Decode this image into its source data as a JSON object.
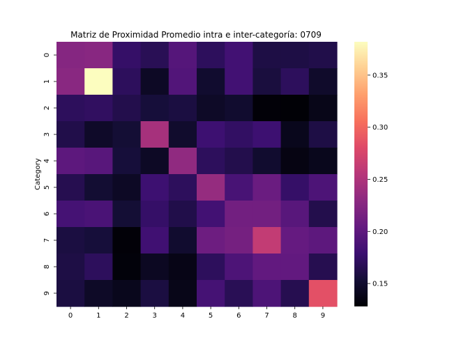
{
  "chart_data": {
    "type": "heatmap",
    "title": "Matriz de Proximidad Promedio intra e inter-categoría: 0709",
    "xlabel": "",
    "ylabel": "Category",
    "x_categories": [
      "0",
      "1",
      "2",
      "3",
      "4",
      "5",
      "6",
      "7",
      "8",
      "9"
    ],
    "y_categories": [
      "0",
      "1",
      "2",
      "3",
      "4",
      "5",
      "6",
      "7",
      "8",
      "9"
    ],
    "colormap": "magma",
    "vmin": 0.128,
    "vmax": 0.382,
    "colorbar_ticks": [
      0.15,
      0.2,
      0.25,
      0.3,
      0.35
    ],
    "colorbar_tick_labels": [
      "0.15",
      "0.20",
      "0.25",
      "0.30",
      "0.35"
    ],
    "values": [
      [
        0.225,
        0.227,
        0.175,
        0.167,
        0.195,
        0.17,
        0.183,
        0.16,
        0.16,
        0.162
      ],
      [
        0.228,
        0.382,
        0.17,
        0.145,
        0.193,
        0.15,
        0.183,
        0.157,
        0.17,
        0.148
      ],
      [
        0.17,
        0.172,
        0.163,
        0.155,
        0.158,
        0.146,
        0.15,
        0.13,
        0.129,
        0.138
      ],
      [
        0.162,
        0.147,
        0.153,
        0.245,
        0.149,
        0.18,
        0.173,
        0.18,
        0.14,
        0.16
      ],
      [
        0.2,
        0.197,
        0.155,
        0.145,
        0.232,
        0.17,
        0.163,
        0.15,
        0.135,
        0.14
      ],
      [
        0.165,
        0.152,
        0.145,
        0.18,
        0.17,
        0.235,
        0.187,
        0.208,
        0.175,
        0.19
      ],
      [
        0.185,
        0.188,
        0.153,
        0.175,
        0.162,
        0.183,
        0.213,
        0.213,
        0.197,
        0.163
      ],
      [
        0.158,
        0.155,
        0.13,
        0.182,
        0.15,
        0.21,
        0.215,
        0.262,
        0.205,
        0.2
      ],
      [
        0.16,
        0.17,
        0.131,
        0.143,
        0.137,
        0.17,
        0.19,
        0.203,
        0.203,
        0.165
      ],
      [
        0.158,
        0.146,
        0.14,
        0.158,
        0.138,
        0.185,
        0.167,
        0.19,
        0.165,
        0.285
      ]
    ]
  }
}
